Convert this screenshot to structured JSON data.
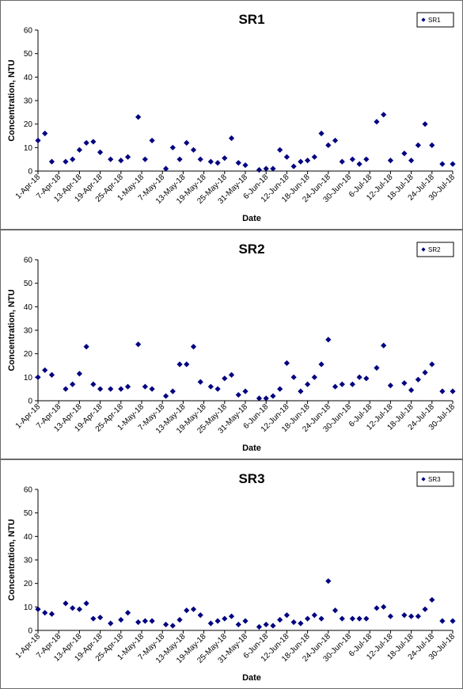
{
  "chart_data": [
    {
      "type": "scatter",
      "title": "SR1",
      "xlabel": "Date",
      "ylabel": "Concentration, NTU",
      "ylim": [
        0,
        60
      ],
      "yticks": [
        0,
        10,
        20,
        30,
        40,
        50,
        60
      ],
      "xlim": [
        "2018-04-01",
        "2018-07-30"
      ],
      "xtick_dates": [
        "2018-04-01",
        "2018-04-07",
        "2018-04-13",
        "2018-04-19",
        "2018-04-25",
        "2018-05-01",
        "2018-05-07",
        "2018-05-13",
        "2018-05-19",
        "2018-05-25",
        "2018-05-31",
        "2018-06-06",
        "2018-06-12",
        "2018-06-18",
        "2018-06-24",
        "2018-06-30",
        "2018-07-06",
        "2018-07-12",
        "2018-07-18",
        "2018-07-24",
        "2018-07-30"
      ],
      "xtick_labels": [
        "1-Apr-18",
        "7-Apr-18",
        "13-Apr-18",
        "19-Apr-18",
        "25-Apr-18",
        "1-May-18",
        "7-May-18",
        "13-May-18",
        "19-May-18",
        "25-May-18",
        "31-May-18",
        "6-Jun-18",
        "12-Jun-18",
        "18-Jun-18",
        "24-Jun-18",
        "30-Jun-18",
        "6-Jul-18",
        "12-Jul-18",
        "18-Jul-18",
        "24-Jul-18",
        "30-Jul-18"
      ],
      "legend": "top-right",
      "grid": false,
      "color": "#000080",
      "series": [
        {
          "name": "SR1",
          "x": [
            "2018-04-01",
            "2018-04-03",
            "2018-04-05",
            "2018-04-09",
            "2018-04-11",
            "2018-04-13",
            "2018-04-15",
            "2018-04-17",
            "2018-04-19",
            "2018-04-22",
            "2018-04-25",
            "2018-04-27",
            "2018-04-30",
            "2018-05-02",
            "2018-05-04",
            "2018-05-08",
            "2018-05-10",
            "2018-05-12",
            "2018-05-14",
            "2018-05-16",
            "2018-05-18",
            "2018-05-21",
            "2018-05-23",
            "2018-05-25",
            "2018-05-27",
            "2018-05-29",
            "2018-05-31",
            "2018-06-04",
            "2018-06-06",
            "2018-06-08",
            "2018-06-10",
            "2018-06-12",
            "2018-06-14",
            "2018-06-16",
            "2018-06-18",
            "2018-06-20",
            "2018-06-22",
            "2018-06-24",
            "2018-06-26",
            "2018-06-28",
            "2018-07-01",
            "2018-07-03",
            "2018-07-05",
            "2018-07-08",
            "2018-07-10",
            "2018-07-12",
            "2018-07-16",
            "2018-07-18",
            "2018-07-20",
            "2018-07-22",
            "2018-07-24",
            "2018-07-27",
            "2018-07-30"
          ],
          "y": [
            13,
            16,
            4,
            4,
            5,
            9,
            12,
            12.5,
            8,
            5,
            4.5,
            6,
            23,
            5,
            13,
            1,
            10,
            5,
            12,
            9,
            5,
            4,
            3.5,
            5.5,
            14,
            3.5,
            2.5,
            0.5,
            1,
            1,
            9,
            6,
            2,
            4,
            4.5,
            6,
            16,
            11,
            13,
            4,
            5,
            3,
            5,
            21,
            24,
            4.5,
            7.5,
            4.5,
            11,
            20,
            11,
            3,
            3
          ]
        }
      ]
    },
    {
      "type": "scatter",
      "title": "SR2",
      "xlabel": "Date",
      "ylabel": "Concentration, NTU",
      "ylim": [
        0,
        60
      ],
      "yticks": [
        0,
        10,
        20,
        30,
        40,
        50,
        60
      ],
      "xlim": [
        "2018-04-01",
        "2018-07-30"
      ],
      "xtick_dates": [
        "2018-04-01",
        "2018-04-07",
        "2018-04-13",
        "2018-04-19",
        "2018-04-25",
        "2018-05-01",
        "2018-05-07",
        "2018-05-13",
        "2018-05-19",
        "2018-05-25",
        "2018-05-31",
        "2018-06-06",
        "2018-06-12",
        "2018-06-18",
        "2018-06-24",
        "2018-06-30",
        "2018-07-06",
        "2018-07-12",
        "2018-07-18",
        "2018-07-24",
        "2018-07-30"
      ],
      "xtick_labels": [
        "1-Apr-18",
        "7-Apr-18",
        "13-Apr-18",
        "19-Apr-18",
        "25-Apr-18",
        "1-May-18",
        "7-May-18",
        "13-May-18",
        "19-May-18",
        "25-May-18",
        "31-May-18",
        "6-Jun-18",
        "12-Jun-18",
        "18-Jun-18",
        "24-Jun-18",
        "30-Jun-18",
        "6-Jul-18",
        "12-Jul-18",
        "18-Jul-18",
        "24-Jul-18",
        "30-Jul-18"
      ],
      "legend": "top-right",
      "grid": false,
      "color": "#000080",
      "series": [
        {
          "name": "SR2",
          "x": [
            "2018-04-01",
            "2018-04-03",
            "2018-04-05",
            "2018-04-09",
            "2018-04-11",
            "2018-04-13",
            "2018-04-15",
            "2018-04-17",
            "2018-04-19",
            "2018-04-22",
            "2018-04-25",
            "2018-04-27",
            "2018-04-30",
            "2018-05-02",
            "2018-05-04",
            "2018-05-08",
            "2018-05-10",
            "2018-05-12",
            "2018-05-14",
            "2018-05-16",
            "2018-05-18",
            "2018-05-21",
            "2018-05-23",
            "2018-05-25",
            "2018-05-27",
            "2018-05-29",
            "2018-05-31",
            "2018-06-04",
            "2018-06-06",
            "2018-06-08",
            "2018-06-10",
            "2018-06-12",
            "2018-06-14",
            "2018-06-16",
            "2018-06-18",
            "2018-06-20",
            "2018-06-22",
            "2018-06-24",
            "2018-06-26",
            "2018-06-28",
            "2018-07-01",
            "2018-07-03",
            "2018-07-05",
            "2018-07-08",
            "2018-07-10",
            "2018-07-12",
            "2018-07-16",
            "2018-07-18",
            "2018-07-20",
            "2018-07-22",
            "2018-07-24",
            "2018-07-27",
            "2018-07-30"
          ],
          "y": [
            10,
            13,
            11,
            5,
            7,
            11.5,
            23,
            7,
            5,
            5,
            5,
            6,
            24,
            6,
            5,
            2,
            4,
            15.5,
            15.5,
            23,
            8,
            6,
            5,
            9.5,
            11,
            2.5,
            4,
            1,
            1,
            2,
            5,
            16,
            10,
            4,
            7,
            10,
            15.5,
            26,
            6,
            7,
            7,
            10,
            9.5,
            14,
            23.5,
            6.5,
            7.5,
            4.5,
            9,
            12,
            15.5,
            4,
            4
          ]
        }
      ]
    },
    {
      "type": "scatter",
      "title": "SR3",
      "xlabel": "Date",
      "ylabel": "Concentration, NTU",
      "ylim": [
        0,
        60
      ],
      "yticks": [
        0,
        10,
        20,
        30,
        40,
        50,
        60
      ],
      "xlim": [
        "2018-04-01",
        "2018-07-30"
      ],
      "xtick_dates": [
        "2018-04-01",
        "2018-04-07",
        "2018-04-13",
        "2018-04-19",
        "2018-04-25",
        "2018-05-01",
        "2018-05-07",
        "2018-05-13",
        "2018-05-19",
        "2018-05-25",
        "2018-05-31",
        "2018-06-06",
        "2018-06-12",
        "2018-06-18",
        "2018-06-24",
        "2018-06-30",
        "2018-07-06",
        "2018-07-12",
        "2018-07-18",
        "2018-07-24",
        "2018-07-30"
      ],
      "xtick_labels": [
        "1-Apr-18",
        "7-Apr-18",
        "13-Apr-18",
        "19-Apr-18",
        "25-Apr-18",
        "1-May-18",
        "7-May-18",
        "13-May-18",
        "19-May-18",
        "25-May-18",
        "31-May-18",
        "6-Jun-18",
        "12-Jun-18",
        "18-Jun-18",
        "24-Jun-18",
        "30-Jun-18",
        "6-Jul-18",
        "12-Jul-18",
        "18-Jul-18",
        "24-Jul-18",
        "30-Jul-18"
      ],
      "legend": "top-right",
      "grid": false,
      "color": "#000080",
      "series": [
        {
          "name": "SR3",
          "x": [
            "2018-04-01",
            "2018-04-03",
            "2018-04-05",
            "2018-04-09",
            "2018-04-11",
            "2018-04-13",
            "2018-04-15",
            "2018-04-17",
            "2018-04-19",
            "2018-04-22",
            "2018-04-25",
            "2018-04-27",
            "2018-04-30",
            "2018-05-02",
            "2018-05-04",
            "2018-05-08",
            "2018-05-10",
            "2018-05-12",
            "2018-05-14",
            "2018-05-16",
            "2018-05-18",
            "2018-05-21",
            "2018-05-23",
            "2018-05-25",
            "2018-05-27",
            "2018-05-29",
            "2018-05-31",
            "2018-06-04",
            "2018-06-06",
            "2018-06-08",
            "2018-06-10",
            "2018-06-12",
            "2018-06-14",
            "2018-06-16",
            "2018-06-18",
            "2018-06-20",
            "2018-06-22",
            "2018-06-24",
            "2018-06-26",
            "2018-06-28",
            "2018-07-01",
            "2018-07-03",
            "2018-07-05",
            "2018-07-08",
            "2018-07-10",
            "2018-07-12",
            "2018-07-16",
            "2018-07-18",
            "2018-07-20",
            "2018-07-22",
            "2018-07-24",
            "2018-07-27",
            "2018-07-30"
          ],
          "y": [
            9,
            7.5,
            7,
            11.5,
            9.5,
            9,
            11.5,
            5,
            5.5,
            3,
            4.5,
            7.5,
            3.5,
            4,
            4,
            2.5,
            2,
            4.5,
            8.5,
            9,
            6.5,
            3,
            4,
            5,
            6,
            2.5,
            4,
            1.5,
            2.5,
            2,
            4.5,
            6.5,
            3.5,
            3,
            5,
            6.5,
            5,
            21,
            8.5,
            5,
            5,
            5,
            5,
            9.5,
            10,
            6,
            6.5,
            6,
            6,
            9,
            13,
            4,
            4
          ]
        }
      ]
    }
  ]
}
